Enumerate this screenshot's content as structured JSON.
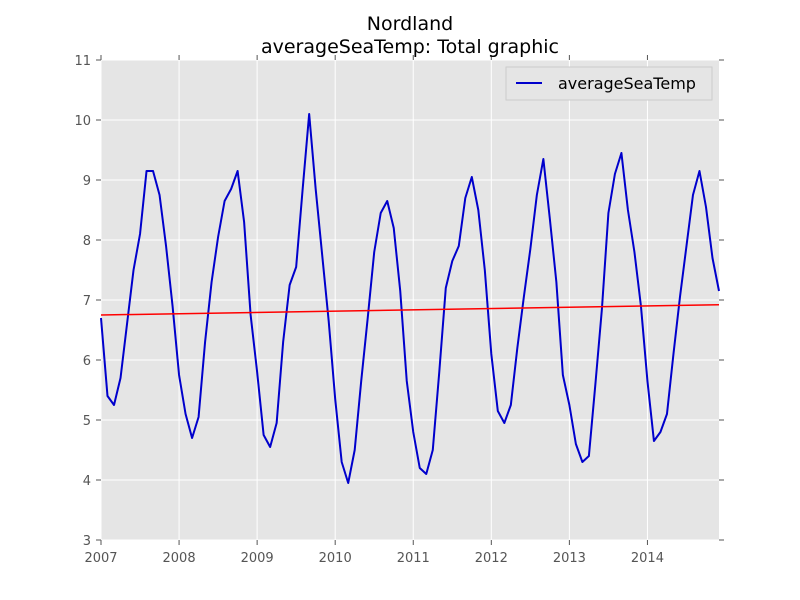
{
  "chart_data": {
    "type": "line",
    "title": "Nordland",
    "subtitle": "averageSeaTemp: Total graphic",
    "xlabel": "",
    "ylabel": "",
    "xlim": [
      2007.0,
      2014.9167
    ],
    "ylim": [
      3,
      11
    ],
    "x_ticks": [
      2007,
      2008,
      2009,
      2010,
      2011,
      2012,
      2013,
      2014
    ],
    "y_ticks": [
      3,
      4,
      5,
      6,
      7,
      8,
      9,
      10,
      11
    ],
    "grid": true,
    "legend_placement": "top-right",
    "series": [
      {
        "name": "averageSeaTemp",
        "color": "#0000cc",
        "x": [
          2007.0,
          2007.0833,
          2007.1667,
          2007.25,
          2007.3333,
          2007.4167,
          2007.5,
          2007.5833,
          2007.6667,
          2007.75,
          2007.8333,
          2007.9167,
          2008.0,
          2008.0833,
          2008.1667,
          2008.25,
          2008.3333,
          2008.4167,
          2008.5,
          2008.5833,
          2008.6667,
          2008.75,
          2008.8333,
          2008.9167,
          2009.0,
          2009.0833,
          2009.1667,
          2009.25,
          2009.3333,
          2009.4167,
          2009.5,
          2009.5833,
          2009.6667,
          2009.75,
          2009.8333,
          2009.9167,
          2010.0,
          2010.0833,
          2010.1667,
          2010.25,
          2010.3333,
          2010.4167,
          2010.5,
          2010.5833,
          2010.6667,
          2010.75,
          2010.8333,
          2010.9167,
          2011.0,
          2011.0833,
          2011.1667,
          2011.25,
          2011.3333,
          2011.4167,
          2011.5,
          2011.5833,
          2011.6667,
          2011.75,
          2011.8333,
          2011.9167,
          2012.0,
          2012.0833,
          2012.1667,
          2012.25,
          2012.3333,
          2012.4167,
          2012.5,
          2012.5833,
          2012.6667,
          2012.75,
          2012.8333,
          2012.9167,
          2013.0,
          2013.0833,
          2013.1667,
          2013.25,
          2013.3333,
          2013.4167,
          2013.5,
          2013.5833,
          2013.6667,
          2013.75,
          2013.8333,
          2013.9167,
          2014.0,
          2014.0833,
          2014.1667,
          2014.25,
          2014.3333,
          2014.4167,
          2014.5,
          2014.5833,
          2014.6667,
          2014.75,
          2014.8333,
          2014.9167
        ],
        "values": [
          6.7,
          5.4,
          5.25,
          5.7,
          6.6,
          7.5,
          8.1,
          9.15,
          9.15,
          8.75,
          7.9,
          6.9,
          5.75,
          5.1,
          4.7,
          5.05,
          6.3,
          7.3,
          8.05,
          8.65,
          8.85,
          9.15,
          8.3,
          6.75,
          5.8,
          4.75,
          4.55,
          4.95,
          6.3,
          7.25,
          7.55,
          8.85,
          10.1,
          8.85,
          7.75,
          6.65,
          5.35,
          4.3,
          3.95,
          4.5,
          5.65,
          6.7,
          7.8,
          8.45,
          8.65,
          8.2,
          7.15,
          5.65,
          4.8,
          4.2,
          4.1,
          4.5,
          5.8,
          7.2,
          7.65,
          7.9,
          8.7,
          9.05,
          8.5,
          7.5,
          6.1,
          5.15,
          4.95,
          5.25,
          6.2,
          7.05,
          7.85,
          8.75,
          9.35,
          8.35,
          7.3,
          5.75,
          5.25,
          4.6,
          4.3,
          4.4,
          5.6,
          6.85,
          8.45,
          9.1,
          9.45,
          8.5,
          7.8,
          6.9,
          5.65,
          4.65,
          4.8,
          5.1,
          6.1,
          7.05,
          7.9,
          8.75,
          9.15,
          8.55,
          7.7,
          7.15
        ]
      },
      {
        "color": "#ff0000",
        "x": [
          2007.0,
          2014.9167
        ],
        "values": [
          6.75,
          6.92
        ]
      }
    ]
  }
}
